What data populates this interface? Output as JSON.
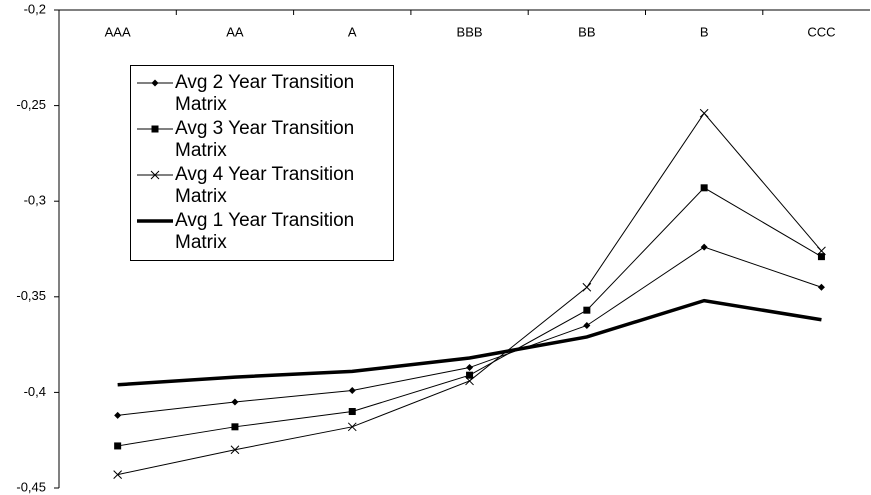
{
  "chart_data": {
    "type": "line",
    "categories": [
      "AAA",
      "AA",
      "A",
      "BBB",
      "BB",
      "B",
      "CCC"
    ],
    "ylim": [
      -0.45,
      -0.2
    ],
    "yticks": [
      {
        "value": -0.2,
        "label": "-0,2"
      },
      {
        "value": -0.25,
        "label": "-0,25"
      },
      {
        "value": -0.3,
        "label": "-0,3"
      },
      {
        "value": -0.35,
        "label": "-0,35"
      },
      {
        "value": -0.4,
        "label": "-0,4"
      },
      {
        "value": -0.45,
        "label": "-0,45"
      }
    ],
    "grid": false,
    "legend": "top-left",
    "series": [
      {
        "name": "Avg 2 Year Transition Matrix",
        "color": "#000000",
        "marker": "diamond",
        "width": 1,
        "values": [
          -0.412,
          -0.405,
          -0.399,
          -0.387,
          -0.365,
          -0.324,
          -0.345
        ]
      },
      {
        "name": "Avg 3 Year Transition Matrix",
        "color": "#000000",
        "marker": "square",
        "width": 1,
        "values": [
          -0.428,
          -0.418,
          -0.41,
          -0.391,
          -0.357,
          -0.293,
          -0.329
        ]
      },
      {
        "name": "Avg 4 Year Transition Matrix",
        "color": "#000000",
        "marker": "x",
        "width": 1,
        "values": [
          -0.443,
          -0.43,
          -0.418,
          -0.394,
          -0.345,
          -0.254,
          -0.326
        ]
      },
      {
        "name": "Avg 1 Year Transition Matrix",
        "color": "#000000",
        "marker": "none",
        "width": 3.5,
        "values": [
          -0.396,
          -0.392,
          -0.389,
          -0.382,
          -0.371,
          -0.352,
          -0.362
        ]
      }
    ]
  }
}
